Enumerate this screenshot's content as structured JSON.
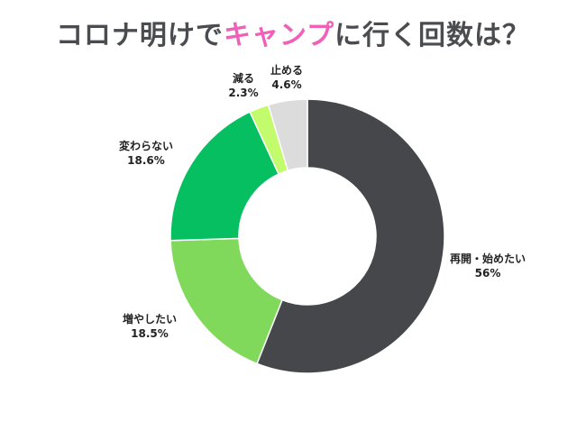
{
  "title": {
    "part1": "コロナ明けで",
    "highlight": "キャンプ",
    "part2": "に行く回数は？"
  },
  "chart_data": {
    "type": "pie",
    "donut": true,
    "title": "コロナ明けでキャンプに行く回数は？",
    "slices": [
      {
        "label": "再開・始めたい",
        "value": 56,
        "value_text": "56%",
        "color": "#45474b"
      },
      {
        "label": "増やしたい",
        "value": 18.5,
        "value_text": "18.5%",
        "color": "#80d95a"
      },
      {
        "label": "変わらない",
        "value": 18.6,
        "value_text": "18.6%",
        "color": "#06bf60"
      },
      {
        "label": "減る",
        "value": 2.3,
        "value_text": "2.3%",
        "color": "#c2fc6d"
      },
      {
        "label": "止める",
        "value": 4.6,
        "value_text": "4.6%",
        "color": "#dcdcdc"
      }
    ]
  }
}
